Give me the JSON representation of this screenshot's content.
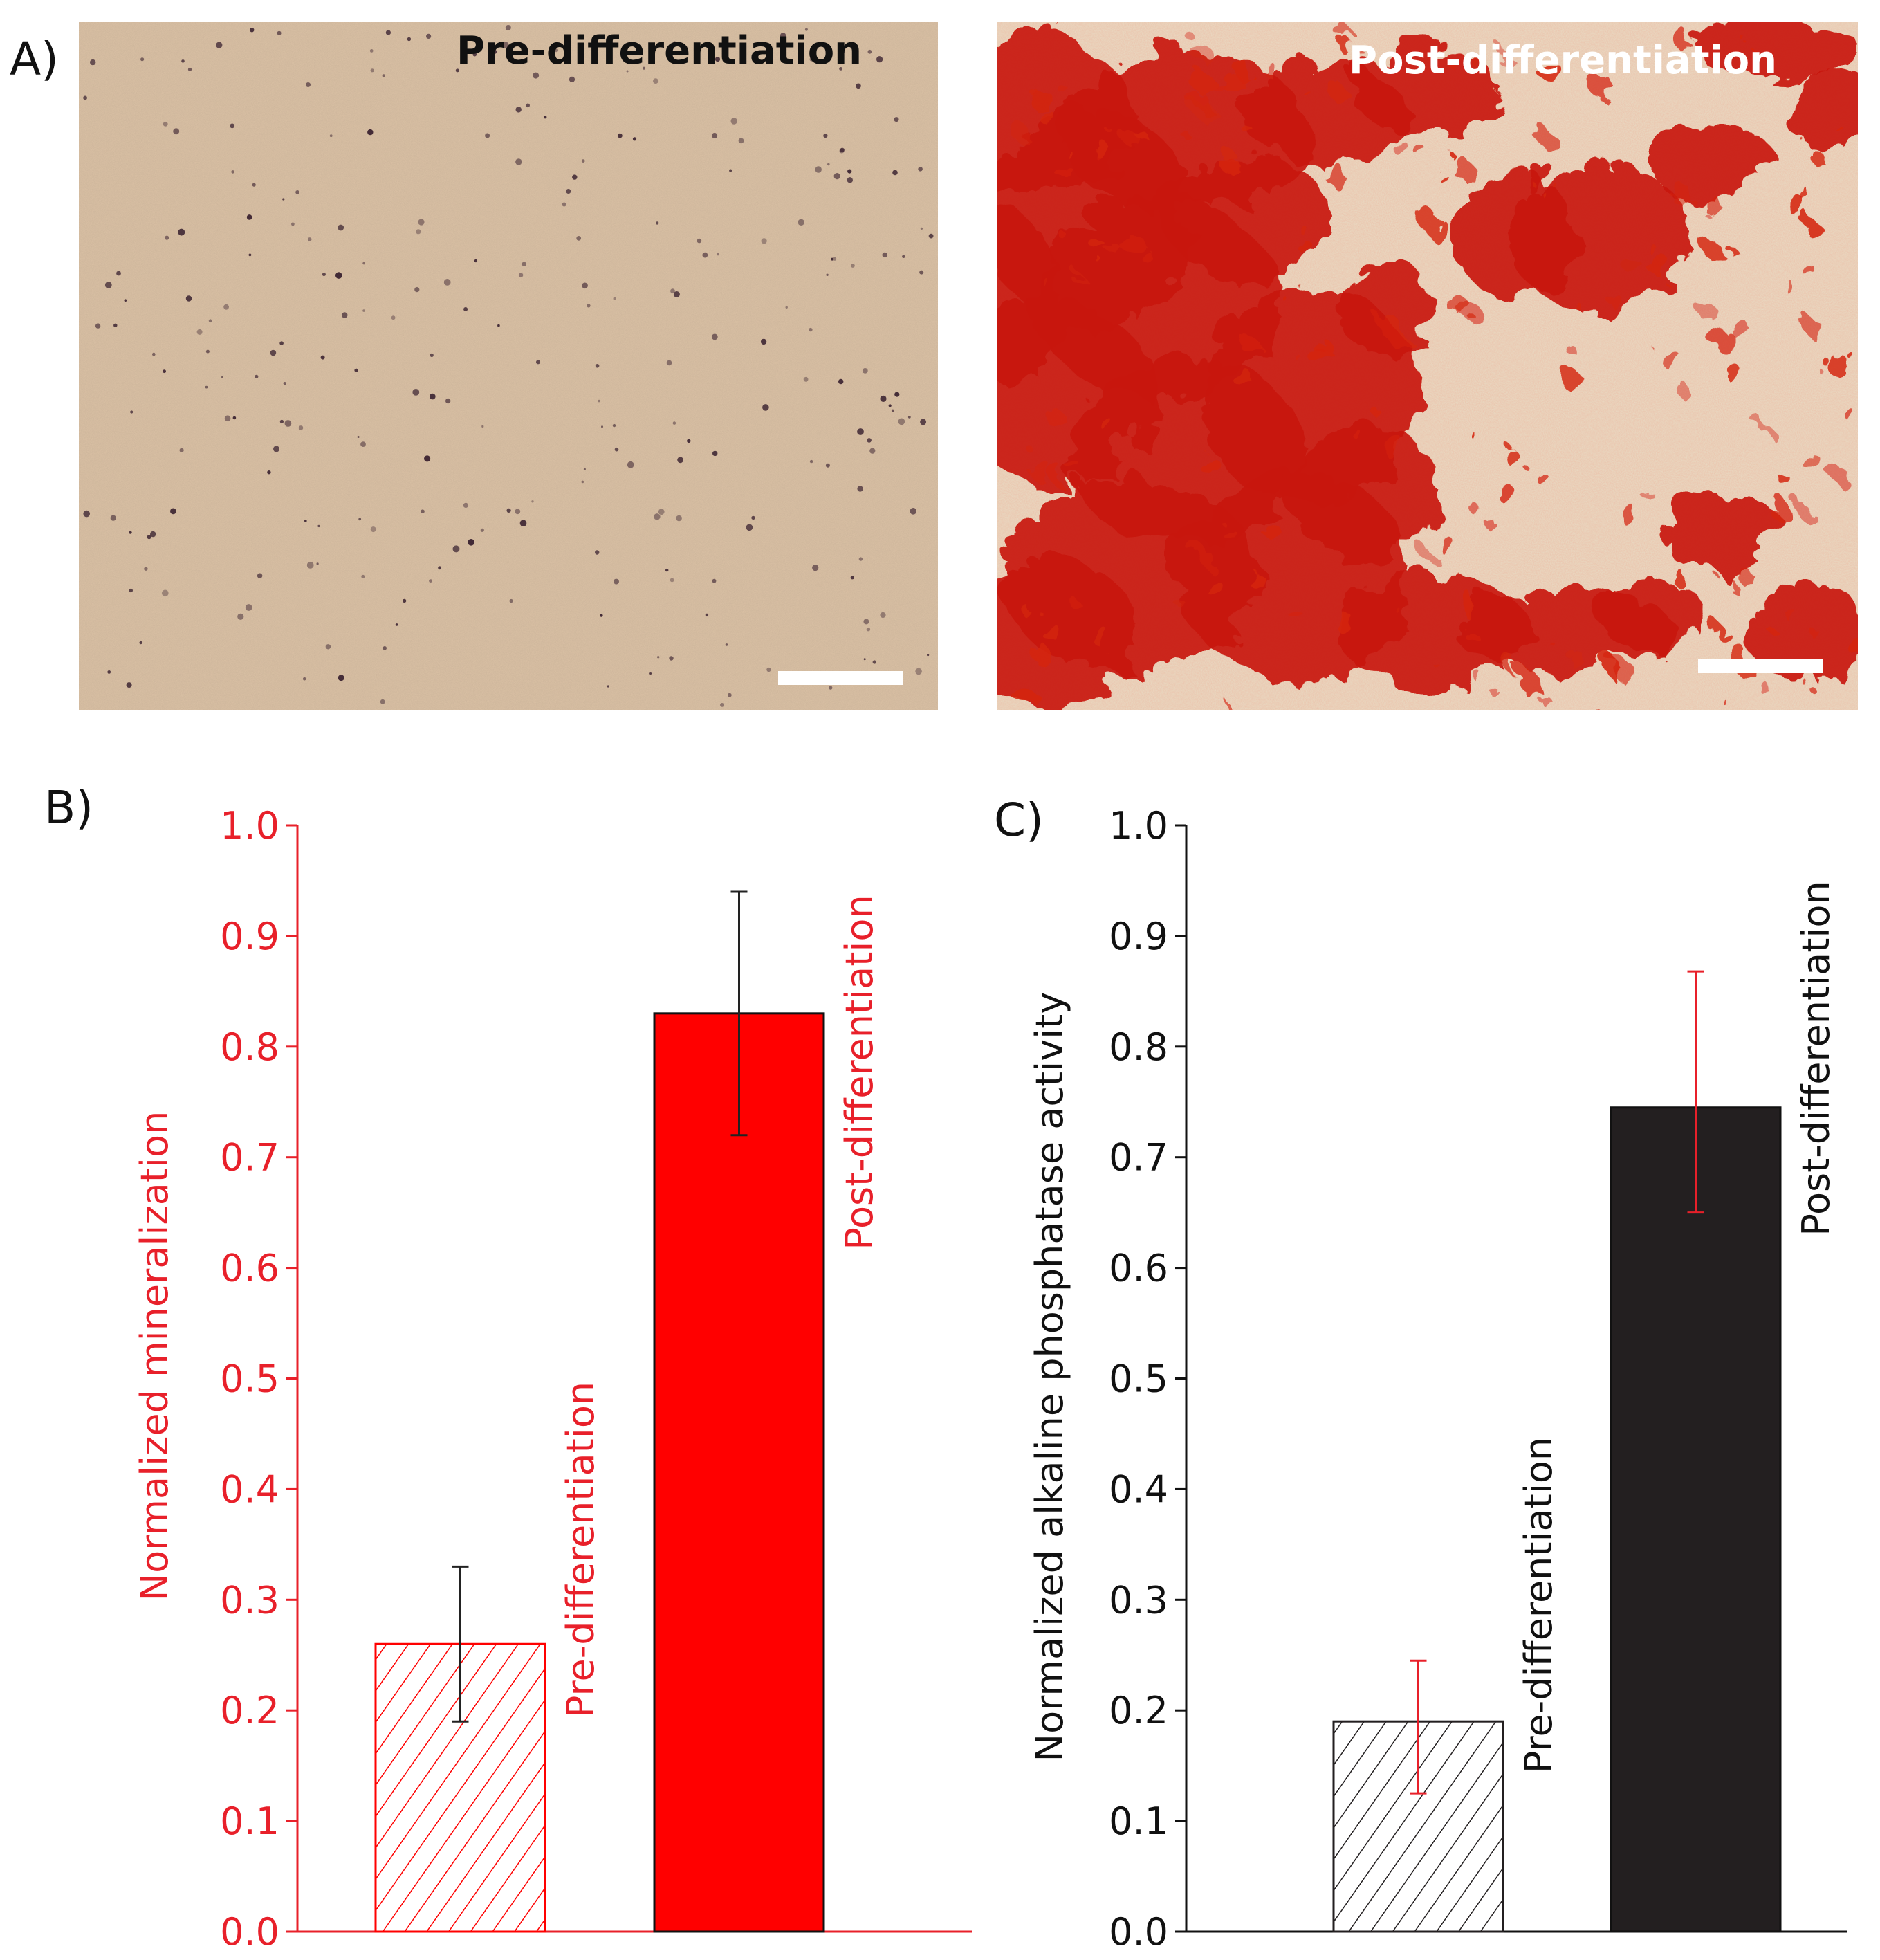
{
  "panel_labels": [
    "A)",
    "B)",
    "C)"
  ],
  "images": [
    {
      "title": "Pre-differentiation",
      "title_color": "#111111",
      "texture": "pre-differentiation-tissue",
      "base_color": "#d8bfa3",
      "speck_color": "#3a2230"
    },
    {
      "title": "Post-differentiation",
      "title_color": "#ffffff",
      "texture": "post-differentiation-tissue",
      "base_color": "#e9d7c0",
      "stain_color": "#c8180a"
    }
  ],
  "chart_data": [
    {
      "type": "bar",
      "panel": "B)",
      "categories": [
        "Pre-differentiation",
        "Post-differentiation"
      ],
      "values": [
        0.26,
        0.83
      ],
      "errors": [
        {
          "low": 0.19,
          "high": 0.33
        },
        {
          "low": 0.72,
          "high": 0.94
        }
      ],
      "patterns": [
        "hatched",
        "solid"
      ],
      "bar_color": "#ff0000",
      "axis_color": "#e8202a",
      "error_color": "#222222",
      "ylabel": "Normalized mineralization",
      "ylim": [
        0.0,
        1.0
      ],
      "yticks": [
        "0.0",
        "0.1",
        "0.2",
        "0.3",
        "0.4",
        "0.5",
        "0.6",
        "0.7",
        "0.8",
        "0.9",
        "1.0"
      ],
      "grid": false
    },
    {
      "type": "bar",
      "panel": "C)",
      "categories": [
        "Pre-differentiation",
        "Post-differentiation"
      ],
      "values": [
        0.19,
        0.745
      ],
      "errors": [
        {
          "low": 0.125,
          "high": 0.245
        },
        {
          "low": 0.65,
          "high": 0.868
        }
      ],
      "patterns": [
        "hatched",
        "solid"
      ],
      "bar_color": "#231f20",
      "axis_color": "#111111",
      "error_color": "#e8202a",
      "ylabel": "Normalized alkaline phosphatase activity",
      "ylim": [
        0.0,
        1.0
      ],
      "yticks": [
        "0.0",
        "0.1",
        "0.2",
        "0.3",
        "0.4",
        "0.5",
        "0.6",
        "0.7",
        "0.8",
        "0.9",
        "1.0"
      ],
      "grid": false
    }
  ]
}
